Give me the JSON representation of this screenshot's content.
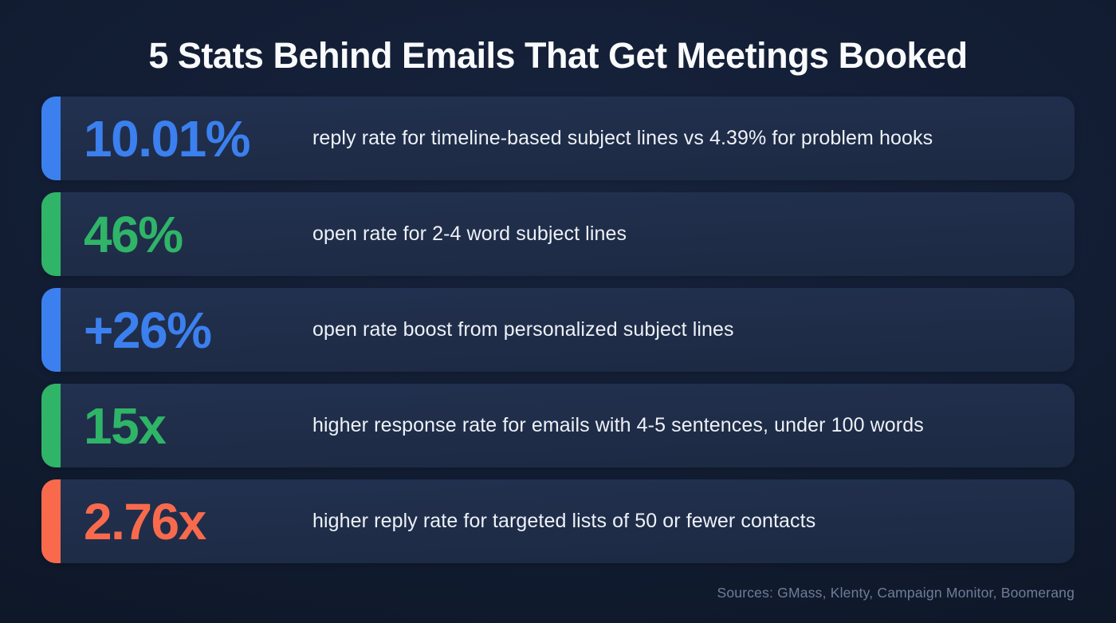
{
  "title": "5 Stats Behind Emails That Get Meetings Booked",
  "sources": "Sources: GMass, Klenty, Campaign Monitor, Boomerang",
  "colors": {
    "blue": "#3b80ee",
    "green": "#2fb468",
    "orange": "#f96a4d"
  },
  "stats": [
    {
      "value": "10.01%",
      "color": "blue",
      "description": "reply rate for timeline-based subject lines vs 4.39% for problem hooks"
    },
    {
      "value": "46%",
      "color": "green",
      "description": "open rate for 2-4 word subject lines"
    },
    {
      "value": "+26%",
      "color": "blue",
      "description": "open rate boost from personalized subject lines"
    },
    {
      "value": "15x",
      "color": "green",
      "description": "higher response rate for emails with 4-5 sentences, under 100 words"
    },
    {
      "value": "2.76x",
      "color": "orange",
      "description": "higher reply rate for targeted lists of 50 or fewer contacts"
    }
  ],
  "chart_data": {
    "type": "table",
    "title": "5 Stats Behind Emails That Get Meetings Booked",
    "columns": [
      "stat_value",
      "description",
      "accent_color"
    ],
    "rows": [
      [
        "10.01%",
        "reply rate for timeline-based subject lines vs 4.39% for problem hooks",
        "blue"
      ],
      [
        "46%",
        "open rate for 2-4 word subject lines",
        "green"
      ],
      [
        "+26%",
        "open rate boost from personalized subject lines",
        "blue"
      ],
      [
        "15x",
        "higher response rate for emails with 4-5 sentences, under 100 words",
        "green"
      ],
      [
        "2.76x",
        "higher reply rate for targeted lists of 50 or fewer contacts",
        "orange"
      ]
    ],
    "footnote": "Sources: GMass, Klenty, Campaign Monitor, Boomerang"
  }
}
